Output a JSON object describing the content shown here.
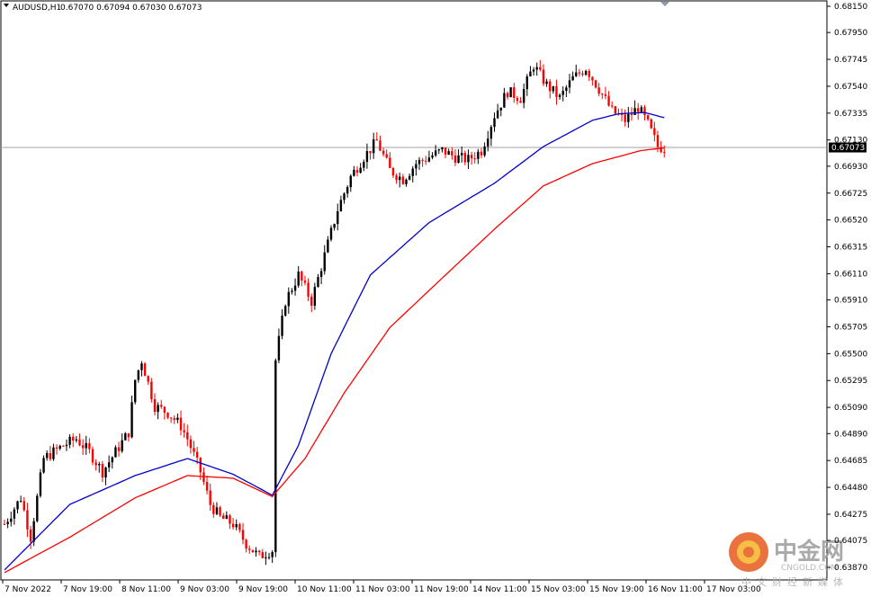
{
  "header": {
    "symbol": "AUDUSD,H1",
    "ohlc": "0.67070 0.67094 0.67030 0.67073"
  },
  "colors": {
    "bull": "#000000",
    "bear": "#ff0000",
    "ma_fast": "#0000cc",
    "ma_slow": "#ff0000",
    "price_line": "#a0a0a0",
    "price_box": "#000000"
  },
  "watermark": {
    "cn": "中金网",
    "en": "CNGOLD.COM",
    "sub": "中文财经新媒体"
  },
  "chart_data": {
    "type": "candlestick",
    "symbol": "AUDUSD",
    "timeframe": "H1",
    "current_price": "0.67073",
    "y_ticks": [
      "0.68150",
      "0.67950",
      "0.67745",
      "0.67540",
      "0.67335",
      "0.67130",
      "0.66930",
      "0.66725",
      "0.66520",
      "0.66315",
      "0.66110",
      "0.65910",
      "0.65705",
      "0.65500",
      "0.65295",
      "0.65090",
      "0.64890",
      "0.64685",
      "0.64480",
      "0.64275",
      "0.64075",
      "0.63870"
    ],
    "x_ticks": [
      "7 Nov 2022",
      "7 Nov 19:00",
      "8 Nov 11:00",
      "9 Nov 03:00",
      "9 Nov 19:00",
      "10 Nov 11:00",
      "11 Nov 03:00",
      "11 Nov 19:00",
      "14 Nov 11:00",
      "15 Nov 03:00",
      "15 Nov 19:00",
      "16 Nov 11:00",
      "17 Nov 03:00"
    ],
    "ylim": [
      0.638,
      0.682
    ],
    "anchors": [
      [
        0,
        0.642
      ],
      [
        5,
        0.644
      ],
      [
        8,
        0.641
      ],
      [
        12,
        0.647
      ],
      [
        18,
        0.648
      ],
      [
        22,
        0.6485
      ],
      [
        26,
        0.6475
      ],
      [
        30,
        0.646
      ],
      [
        34,
        0.6475
      ],
      [
        38,
        0.649
      ],
      [
        40,
        0.653
      ],
      [
        42,
        0.6545
      ],
      [
        46,
        0.651
      ],
      [
        50,
        0.6505
      ],
      [
        54,
        0.6495
      ],
      [
        56,
        0.6485
      ],
      [
        60,
        0.646
      ],
      [
        63,
        0.6435
      ],
      [
        66,
        0.6425
      ],
      [
        70,
        0.642
      ],
      [
        74,
        0.6405
      ],
      [
        78,
        0.6395
      ],
      [
        80,
        0.6398
      ],
      [
        82,
        0.64
      ],
      [
        83,
        0.6545
      ],
      [
        86,
        0.659
      ],
      [
        90,
        0.661
      ],
      [
        94,
        0.659
      ],
      [
        98,
        0.6625
      ],
      [
        102,
        0.666
      ],
      [
        106,
        0.6685
      ],
      [
        110,
        0.67
      ],
      [
        114,
        0.6712
      ],
      [
        118,
        0.669
      ],
      [
        122,
        0.6683
      ],
      [
        126,
        0.6695
      ],
      [
        130,
        0.67
      ],
      [
        134,
        0.6705
      ],
      [
        138,
        0.67
      ],
      [
        142,
        0.6698
      ],
      [
        146,
        0.6705
      ],
      [
        150,
        0.6732
      ],
      [
        154,
        0.675
      ],
      [
        158,
        0.6745
      ],
      [
        162,
        0.677
      ],
      [
        166,
        0.6755
      ],
      [
        170,
        0.6745
      ],
      [
        174,
        0.676
      ],
      [
        178,
        0.6768
      ],
      [
        182,
        0.6752
      ],
      [
        186,
        0.6735
      ],
      [
        190,
        0.6728
      ],
      [
        194,
        0.6738
      ],
      [
        197,
        0.6725
      ],
      [
        200,
        0.6708
      ],
      [
        202,
        0.6707
      ]
    ],
    "series": [
      {
        "name": "",
        "type": "ma",
        "color": "#0000cc",
        "anchors": [
          [
            0,
            0.6385
          ],
          [
            20,
            0.6435
          ],
          [
            40,
            0.6457
          ],
          [
            56,
            0.647
          ],
          [
            70,
            0.6458
          ],
          [
            82,
            0.6442
          ],
          [
            90,
            0.648
          ],
          [
            100,
            0.655
          ],
          [
            112,
            0.661
          ],
          [
            130,
            0.665
          ],
          [
            150,
            0.668
          ],
          [
            165,
            0.6708
          ],
          [
            180,
            0.6728
          ],
          [
            188,
            0.6733
          ],
          [
            196,
            0.6734
          ],
          [
            202,
            0.673
          ]
        ]
      },
      {
        "name": "",
        "type": "ma",
        "color": "#ff0000",
        "anchors": [
          [
            0,
            0.6383
          ],
          [
            20,
            0.641
          ],
          [
            40,
            0.644
          ],
          [
            56,
            0.6457
          ],
          [
            70,
            0.6455
          ],
          [
            82,
            0.6441
          ],
          [
            92,
            0.647
          ],
          [
            104,
            0.652
          ],
          [
            118,
            0.657
          ],
          [
            135,
            0.661
          ],
          [
            150,
            0.6645
          ],
          [
            165,
            0.6678
          ],
          [
            180,
            0.6695
          ],
          [
            195,
            0.6705
          ],
          [
            202,
            0.6707
          ]
        ]
      }
    ]
  }
}
